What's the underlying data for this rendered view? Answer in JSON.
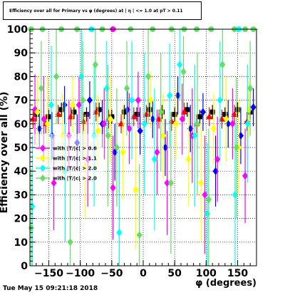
{
  "title": "Efficiency over all for Primary vs φ (degrees) at | η | <= 1.0 at pT > 0.11",
  "xlabel": "φ (degrees)",
  "ylabel": "Efficiency over all (%)",
  "datestamp": "Tue May 15 09:21:18 2018",
  "chart_data": {
    "type": "scatter",
    "title": "Efficiency over all for Primary vs φ (degrees) at | η | <= 1.0 at pT > 0.11",
    "xlabel": "φ (degrees)",
    "ylabel": "Efficiency over all (%)",
    "xlim": [
      -180,
      180
    ],
    "ylim": [
      0,
      100
    ],
    "xticks": [
      -150,
      -100,
      -50,
      0,
      50,
      100,
      150
    ],
    "yticks": [
      0,
      10,
      20,
      30,
      40,
      50,
      60,
      70,
      80,
      90,
      100
    ],
    "grid": true,
    "legend_position": "left-middle",
    "legend": [
      {
        "label": "with |T/|c| > 0.6",
        "color": "#ff00ff"
      },
      {
        "label": "with |T/|c| > 1.1",
        "color": "#ffff00"
      },
      {
        "label": "with |T/|c| > 2.0",
        "color": "#00ffff"
      },
      {
        "label": "with |T/|c| > 2.0",
        "color": "#66dd66"
      }
    ],
    "series": [
      {
        "color": "#000000",
        "marker": "square",
        "x": [
          -170,
          -150,
          -130,
          -110,
          -90,
          -70,
          -50,
          -30,
          -10,
          10,
          30,
          50,
          70,
          90,
          110,
          130,
          150,
          170
        ],
        "y": [
          64,
          63,
          66,
          65,
          64,
          66,
          63,
          65,
          64,
          66,
          65,
          64,
          66,
          63,
          65,
          64,
          66,
          65
        ],
        "err": [
          3,
          3,
          3,
          3,
          3,
          3,
          3,
          3,
          3,
          3,
          3,
          3,
          3,
          3,
          3,
          3,
          3,
          3
        ]
      },
      {
        "color": "#ff0000",
        "marker": "triangle",
        "x": [
          -175,
          -155,
          -135,
          -115,
          -95,
          -75,
          -55,
          -35,
          -15,
          5,
          25,
          45,
          65,
          85,
          105,
          125,
          145,
          165
        ],
        "y": [
          62,
          60,
          64,
          63,
          61,
          65,
          62,
          60,
          63,
          64,
          62,
          61,
          65,
          60,
          63,
          62,
          64,
          61
        ],
        "err": [
          4,
          4,
          4,
          4,
          4,
          4,
          4,
          4,
          4,
          4,
          4,
          4,
          4,
          4,
          4,
          4,
          4,
          4
        ]
      },
      {
        "color": "#0000ff",
        "marker": "diamond",
        "x": [
          -165,
          -145,
          -125,
          -105,
          -85,
          -65,
          -45,
          -25,
          -5,
          15,
          35,
          55,
          75,
          95,
          115,
          135,
          155,
          175
        ],
        "y": [
          58,
          55,
          68,
          52,
          70,
          60,
          48,
          66,
          57,
          62,
          50,
          72,
          58,
          65,
          40,
          60,
          55,
          67
        ],
        "err": [
          8,
          10,
          8,
          12,
          8,
          10,
          12,
          8,
          10,
          8,
          12,
          8,
          10,
          8,
          15,
          10,
          12,
          8
        ]
      },
      {
        "color": "#ff00ff",
        "marker": "diamond",
        "x": [
          -172,
          -158,
          -142,
          -118,
          -102,
          -88,
          -62,
          -48,
          -22,
          -8,
          22,
          38,
          62,
          78,
          98,
          118,
          142,
          162
        ],
        "y": [
          66,
          62,
          35,
          55,
          68,
          45,
          60,
          33,
          58,
          70,
          48,
          35,
          62,
          55,
          30,
          45,
          60,
          38
        ],
        "err": [
          15,
          18,
          20,
          15,
          12,
          20,
          15,
          22,
          15,
          12,
          18,
          22,
          15,
          20,
          25,
          18,
          15,
          20
        ]
      },
      {
        "color": "#ffff00",
        "marker": "diamond",
        "x": [
          -168,
          -152,
          -128,
          -112,
          -92,
          -72,
          -52,
          -32,
          -12,
          12,
          32,
          52,
          72,
          92,
          112,
          132,
          152,
          168
        ],
        "y": [
          65,
          60,
          55,
          68,
          42,
          57,
          62,
          48,
          32,
          70,
          55,
          60,
          45,
          35,
          58,
          62,
          50,
          66
        ],
        "err": [
          15,
          20,
          18,
          12,
          22,
          15,
          18,
          20,
          25,
          12,
          18,
          15,
          20,
          25,
          15,
          18,
          20,
          12
        ]
      },
      {
        "color": "#00ffff",
        "marker": "diamond",
        "x": [
          -176,
          -146,
          -124,
          -98,
          -78,
          -58,
          -38,
          -18,
          2,
          18,
          42,
          58,
          82,
          102,
          122,
          146,
          166
        ],
        "y": [
          25,
          68,
          40,
          80,
          55,
          75,
          14,
          70,
          60,
          45,
          72,
          85,
          55,
          22,
          70,
          30,
          60
        ],
        "err": [
          30,
          25,
          30,
          20,
          30,
          20,
          35,
          25,
          30,
          30,
          22,
          15,
          30,
          30,
          25,
          30,
          25
        ]
      },
      {
        "color": "#66dd66",
        "marker": "diamond",
        "x": [
          -178,
          -162,
          -138,
          -116,
          -96,
          -76,
          -56,
          -42,
          -26,
          -6,
          8,
          28,
          44,
          64,
          86,
          104,
          126,
          148,
          170
        ],
        "y": [
          16,
          75,
          80,
          10,
          70,
          85,
          55,
          50,
          75,
          13,
          80,
          65,
          35,
          82,
          60,
          28,
          85,
          50,
          75
        ],
        "err": [
          25,
          20,
          20,
          30,
          25,
          15,
          30,
          25,
          20,
          30,
          20,
          25,
          30,
          15,
          30,
          30,
          15,
          30,
          20
        ]
      }
    ],
    "top_row_points": {
      "x": [
        -178,
        -160,
        -130,
        -105,
        -82,
        -65,
        -48,
        -20,
        15,
        45,
        65,
        85,
        108,
        145,
        152,
        162,
        175
      ],
      "y": 100,
      "colors": [
        "#66dd66",
        "#66dd66",
        "#66dd66",
        "#66dd66",
        "#00ffff",
        "#66dd66",
        "#ff00ff",
        "#66dd66",
        "#66dd66",
        "#66dd66",
        "#66dd66",
        "#66dd66",
        "#66dd66",
        "#66dd66",
        "#00ffff",
        "#66dd66",
        "#66dd66"
      ]
    }
  }
}
